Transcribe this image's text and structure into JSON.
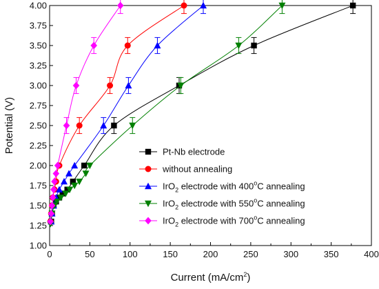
{
  "chart_data": {
    "type": "scatter",
    "xlabel": "Current (mA/cm²)",
    "ylabel": "Potential (V)",
    "xlim": [
      0,
      400
    ],
    "ylim": [
      1.0,
      4.0
    ],
    "x_ticks": [
      "0",
      "50",
      "100",
      "150",
      "200",
      "250",
      "300",
      "350",
      "400"
    ],
    "y_ticks": [
      "1.00",
      "1.25",
      "1.50",
      "1.75",
      "2.00",
      "2.25",
      "2.50",
      "2.75",
      "3.00",
      "3.25",
      "3.50",
      "3.75",
      "4.00"
    ],
    "grid": false,
    "legend_position": "bottom-right",
    "y_error": 0.1,
    "series": [
      {
        "name": "Pt-Nb electrode",
        "legend_parts": [
          "Pt-Nb electrode"
        ],
        "color": "#000000",
        "marker": "square",
        "points": [
          [
            2,
            1.3
          ],
          [
            3,
            1.4
          ],
          [
            5,
            1.5
          ],
          [
            8,
            1.55
          ],
          [
            12,
            1.6
          ],
          [
            16,
            1.65
          ],
          [
            22,
            1.7
          ],
          [
            29,
            1.8
          ],
          [
            43,
            2.0
          ],
          [
            80,
            2.5
          ],
          [
            161,
            3.0
          ],
          [
            254,
            3.5
          ],
          [
            377,
            4.0
          ]
        ]
      },
      {
        "name": "without annealing",
        "legend_parts": [
          "without annealing"
        ],
        "color": "#ff0000",
        "marker": "circle",
        "points": [
          [
            1,
            1.3
          ],
          [
            2,
            1.4
          ],
          [
            3,
            1.5
          ],
          [
            4,
            1.6
          ],
          [
            6,
            1.7
          ],
          [
            8,
            1.8
          ],
          [
            12,
            2.0
          ],
          [
            37,
            2.5
          ],
          [
            75,
            3.0
          ],
          [
            97,
            3.5
          ],
          [
            167,
            4.0
          ]
        ]
      },
      {
        "name": "IrO2 electrode with 400°C annealing",
        "legend_parts": [
          "IrO",
          "2",
          " electrode with 400",
          "o",
          "C annealing"
        ],
        "color": "#0000ff",
        "marker": "triangle-up",
        "points": [
          [
            2,
            1.3
          ],
          [
            3,
            1.4
          ],
          [
            5,
            1.5
          ],
          [
            8,
            1.6
          ],
          [
            12,
            1.7
          ],
          [
            18,
            1.8
          ],
          [
            24,
            1.9
          ],
          [
            31,
            2.0
          ],
          [
            67,
            2.5
          ],
          [
            98,
            3.0
          ],
          [
            134,
            3.5
          ],
          [
            191,
            4.0
          ]
        ]
      },
      {
        "name": "IrO2 electrode with 550°C annealing",
        "legend_parts": [
          "IrO",
          "2",
          " electrode with 550",
          "o",
          "C annealing"
        ],
        "color": "#008000",
        "marker": "triangle-down",
        "points": [
          [
            1,
            1.27
          ],
          [
            3,
            1.4
          ],
          [
            6,
            1.5
          ],
          [
            9,
            1.55
          ],
          [
            14,
            1.6
          ],
          [
            20,
            1.65
          ],
          [
            25,
            1.7
          ],
          [
            31,
            1.75
          ],
          [
            37,
            1.8
          ],
          [
            45,
            1.9
          ],
          [
            50,
            2.0
          ],
          [
            103,
            2.5
          ],
          [
            163,
            3.0
          ],
          [
            235,
            3.5
          ],
          [
            289,
            4.0
          ]
        ]
      },
      {
        "name": "IrO2 electrode with 700°C annealing",
        "legend_parts": [
          "IrO",
          "2",
          " electrode with 700",
          "o",
          "C annealing"
        ],
        "color": "#ff00ff",
        "marker": "diamond",
        "points": [
          [
            1,
            1.3
          ],
          [
            2,
            1.4
          ],
          [
            3,
            1.5
          ],
          [
            4,
            1.6
          ],
          [
            5,
            1.7
          ],
          [
            6,
            1.8
          ],
          [
            8,
            1.9
          ],
          [
            10,
            2.0
          ],
          [
            21,
            2.5
          ],
          [
            33,
            3.0
          ],
          [
            55,
            3.5
          ],
          [
            88,
            4.0
          ]
        ]
      }
    ]
  }
}
